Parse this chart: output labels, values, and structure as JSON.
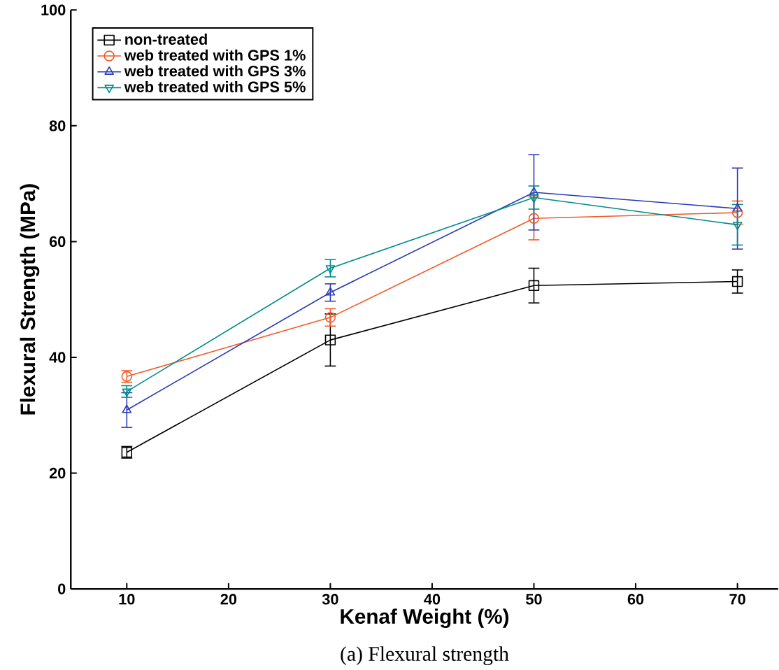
{
  "chart_data": {
    "type": "line",
    "xlabel": "Kenaf Weight (%)",
    "ylabel": "Flexural Strength (MPa)",
    "annotations": [
      "(a) Flexural strength"
    ],
    "x": [
      10,
      30,
      50,
      70
    ],
    "xlim": [
      4.5,
      74
    ],
    "ylim": [
      0,
      100
    ],
    "xticks": [
      10,
      20,
      30,
      40,
      50,
      60,
      70
    ],
    "yticks": [
      0,
      20,
      40,
      60,
      80,
      100
    ],
    "legend": "top left",
    "series": [
      {
        "name": "non-treated",
        "color": "#000000",
        "marker": "square",
        "values": [
          23.6,
          43.0,
          52.4,
          53.1
        ],
        "errors": [
          1,
          4.5,
          3,
          2
        ]
      },
      {
        "name": "web treated with GPS 1%",
        "color": "#f05a28",
        "marker": "circle",
        "values": [
          36.7,
          46.9,
          64.0,
          65.0
        ],
        "errors": [
          1,
          1.5,
          3.7,
          2
        ]
      },
      {
        "name": "web treated with GPS 3%",
        "color": "#2a3bb5",
        "marker": "triangle",
        "values": [
          30.9,
          51.2,
          68.5,
          65.7
        ],
        "errors": [
          3,
          1.5,
          6.5,
          7
        ]
      },
      {
        "name": "web treated with GPS 5%",
        "color": "#008b8b",
        "marker": "triangle down",
        "values": [
          34.1,
          55.4,
          67.6,
          62.9
        ],
        "errors": [
          1,
          1.5,
          2,
          3.5
        ]
      }
    ]
  }
}
